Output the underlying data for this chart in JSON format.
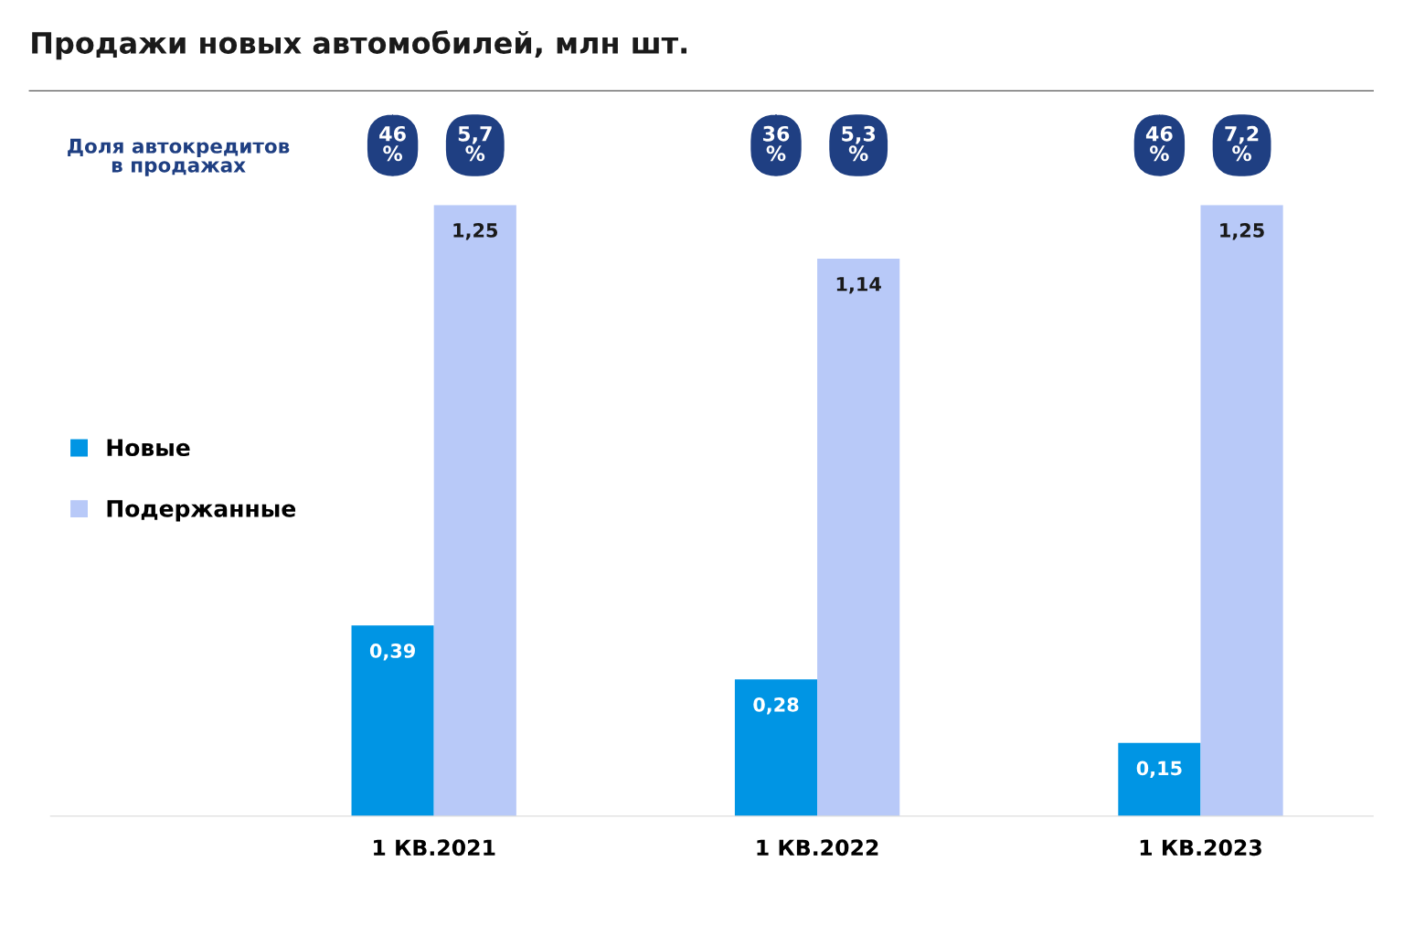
{
  "chart_data": {
    "type": "bar",
    "title": "Продажи новых автомобилей, млн шт.",
    "categories": [
      "1 КВ.2021",
      "1 КВ.2022",
      "1 КВ.2023"
    ],
    "series": [
      {
        "name": "Новые",
        "color": "#0095e4",
        "values": [
          0.39,
          0.28,
          0.15
        ],
        "value_labels": [
          "0,39",
          "0,28",
          "0,15"
        ]
      },
      {
        "name": "Подержанные",
        "color": "#b8c9f8",
        "values": [
          1.25,
          1.14,
          1.25
        ],
        "value_labels": [
          "1,25",
          "1,14",
          "1,25"
        ]
      }
    ],
    "annotations": [
      "Доля автокредитов\nв продажах",
      "46 %",
      "5,7 %",
      "36 %",
      "5,3 %",
      "46 %",
      "7,2 %"
    ],
    "legend": "left",
    "grid": false
  }
}
